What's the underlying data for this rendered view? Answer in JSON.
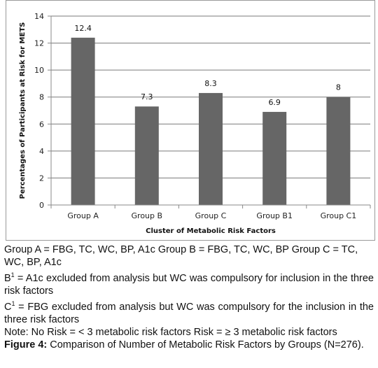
{
  "chart_data": {
    "type": "bar",
    "categories": [
      "Group A",
      "Group B",
      "Group C",
      "Group B1",
      "Group C1"
    ],
    "values": [
      12.4,
      7.3,
      8.3,
      6.9,
      8
    ],
    "data_labels": [
      "12.4",
      "7.3",
      "8.3",
      "6.9",
      "8"
    ],
    "xlabel": "Cluster of Metabolic Risk Factors",
    "ylabel": "Percentages of Participants at Risk for METS",
    "ylim": [
      0,
      14
    ],
    "yticks": [
      "0",
      "2",
      "4",
      "6",
      "8",
      "10",
      "12",
      "14"
    ],
    "grid": "horizontal",
    "bar_color": "#666666"
  },
  "caption": {
    "groups_line": "Group A = FBG, TC, WC, BP, A1c  Group B = FBG, TC, WC, BP  Group C = TC, WC, BP, A1c",
    "b1_prefix": "B",
    "b1_sup": "1",
    "b1_text": " = A1c excluded from analysis but WC was compulsory for inclusion in the three risk factors",
    "c1_prefix": "C",
    "c1_sup": "1",
    "c1_text": " =  FBG excluded from analysis but WC was compulsory for the inclusion in the three risk factors",
    "note": "Note: No Risk = < 3 metabolic risk factors Risk = ≥ 3 metabolic risk factors",
    "figure_label": "Figure 4:",
    "figure_text": " Comparison of Number of Metabolic Risk Factors by Groups (N=276)."
  }
}
